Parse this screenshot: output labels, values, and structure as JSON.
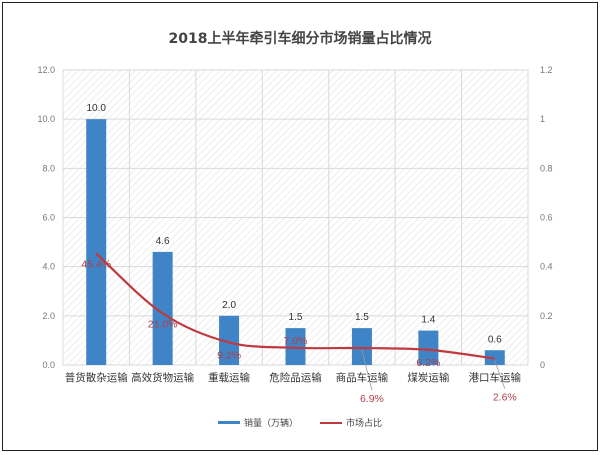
{
  "title": "2018上半年牵引车细分市场销量占比情况",
  "colors": {
    "bar": "#3f84c6",
    "line": "#c0393f",
    "pct_label": "#b0404c",
    "grid": "#d9d9d9",
    "hatch": "#e2e2e2"
  },
  "legend": {
    "bar_label": "销量（万辆）",
    "line_label": "市场占比"
  },
  "chart_data": {
    "type": "bar+line",
    "title": "2018上半年牵引车细分市场销量占比情况",
    "xlabel": "",
    "ylabel": "",
    "categories": [
      "普货散杂运输",
      "高效货物运输",
      "重载运输",
      "危险品运输",
      "商品车运输",
      "煤炭运输",
      "港口车运输"
    ],
    "series": [
      {
        "name": "销量（万辆）",
        "type": "bar",
        "axis": "left",
        "values": [
          10.0,
          4.6,
          2.0,
          1.5,
          1.5,
          1.4,
          0.6
        ],
        "labels": [
          "10.0",
          "4.6",
          "2.0",
          "1.5",
          "1.5",
          "1.4",
          "0.6"
        ]
      },
      {
        "name": "市场占比",
        "type": "line",
        "axis": "right",
        "values": [
          0.454,
          0.21,
          0.092,
          0.07,
          0.069,
          0.062,
          0.026
        ],
        "labels": [
          "45.4%",
          "21.0%",
          "9.2%",
          "7.0%",
          "6.9%",
          "6.2%",
          "2.6%"
        ]
      }
    ],
    "left_axis": {
      "ylim": [
        0,
        12
      ],
      "ticks": [
        "0.0",
        "2.0",
        "4.0",
        "6.0",
        "8.0",
        "10.0",
        "12.0"
      ]
    },
    "right_axis": {
      "ylim": [
        0,
        1.2
      ],
      "ticks": [
        "0",
        "0.2",
        "0.4",
        "0.6",
        "0.8",
        "1",
        "1.2"
      ]
    },
    "grid": true,
    "legend_position": "bottom"
  }
}
